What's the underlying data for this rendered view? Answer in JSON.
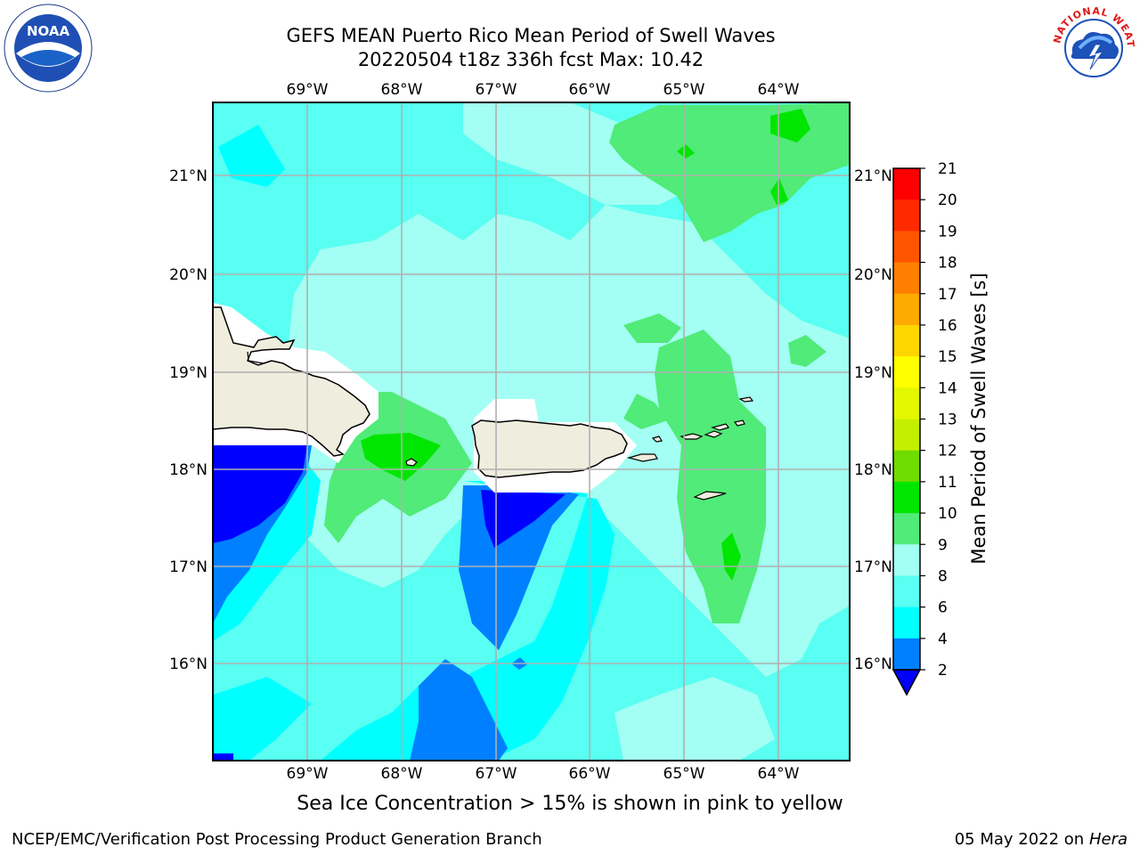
{
  "title": {
    "line1": "GEFS MEAN Puerto Rico Mean Period of Swell Waves",
    "line2": "20220504 t18z 336h fcst   Max: 10.42"
  },
  "map": {
    "lon_ticks": [
      "69°W",
      "68°W",
      "67°W",
      "66°W",
      "65°W",
      "64°W"
    ],
    "lon_values": [
      -69,
      -68,
      -67,
      -66,
      -65,
      -64
    ],
    "lat_ticks": [
      "21°N",
      "20°N",
      "19°N",
      "18°N",
      "17°N",
      "16°N"
    ],
    "lat_values": [
      21,
      20,
      19,
      18,
      17,
      16
    ],
    "lon_range": [
      -70.0,
      -63.25
    ],
    "lat_range": [
      15.0,
      21.75
    ],
    "grid": true,
    "land_color": "#efedde",
    "masked_color": "#ffffff"
  },
  "colorbar": {
    "label": "Mean Period of Swell Waves [s]",
    "levels": [
      "21",
      "20",
      "19",
      "18",
      "17",
      "16",
      "15",
      "14",
      "13",
      "12",
      "11",
      "10",
      "9",
      "8",
      "6",
      "4",
      "2"
    ],
    "colors": [
      "#ff0000",
      "#ff2a00",
      "#ff5500",
      "#ff8000",
      "#ffaa00",
      "#ffd500",
      "#ffff00",
      "#e2f700",
      "#c5ef00",
      "#6edc00",
      "#00e600",
      "#50eb78",
      "#a3fff3",
      "#58fff2",
      "#00ffff",
      "#0080ff",
      "#0000ff"
    ],
    "extend": "min",
    "under_color": "#0000ff"
  },
  "footnote": "Sea Ice Concentration > 15% is shown in pink to yellow",
  "footer": {
    "left": "NCEP/EMC/Verification Post Processing Product Generation Branch",
    "date": "05 May 2022 on",
    "machine": "Hera"
  },
  "logos": {
    "left": "noaa-logo",
    "right": "nws-logo"
  }
}
